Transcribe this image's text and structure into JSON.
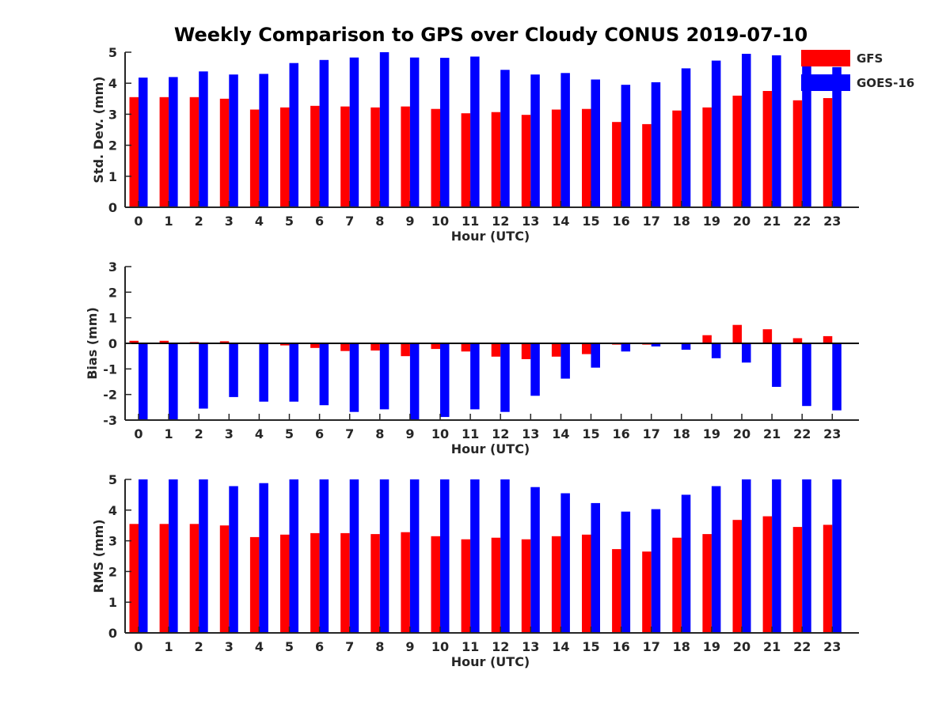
{
  "title": "Weekly Comparison to GPS over Cloudy CONUS 2019-07-10",
  "colors": {
    "GFS": "#ff0000",
    "GOES-16": "#0000ff",
    "axis": "#262626"
  },
  "legend": {
    "placement": "top-right",
    "entries": [
      "GFS",
      "GOES-16"
    ]
  },
  "chart_data": [
    {
      "type": "bar",
      "ylabel": "Std. Dev. (mm)",
      "xlabel": "Hour (UTC)",
      "ylim": [
        0,
        5
      ],
      "yticks": [
        0,
        1,
        2,
        3,
        4,
        5
      ],
      "categories": [
        "0",
        "1",
        "2",
        "3",
        "4",
        "5",
        "6",
        "7",
        "8",
        "9",
        "10",
        "11",
        "12",
        "13",
        "14",
        "15",
        "16",
        "17",
        "18",
        "19",
        "20",
        "21",
        "22",
        "23"
      ],
      "series": [
        {
          "name": "GFS",
          "values": [
            3.55,
            3.55,
            3.55,
            3.5,
            3.15,
            3.22,
            3.27,
            3.25,
            3.22,
            3.25,
            3.17,
            3.03,
            3.07,
            2.98,
            3.15,
            3.17,
            2.75,
            2.68,
            3.12,
            3.22,
            3.6,
            3.75,
            3.45,
            3.52
          ]
        },
        {
          "name": "GOES-16",
          "values": [
            4.18,
            4.2,
            4.38,
            4.28,
            4.3,
            4.65,
            4.75,
            4.83,
            5.0,
            4.83,
            4.82,
            4.86,
            4.43,
            4.28,
            4.33,
            4.12,
            3.95,
            4.03,
            4.48,
            4.73,
            4.95,
            4.9,
            4.6,
            4.52
          ]
        }
      ]
    },
    {
      "type": "bar",
      "ylabel": "Bias (mm)",
      "xlabel": "Hour (UTC)",
      "ylim": [
        -3,
        3
      ],
      "yticks": [
        -3,
        -2,
        -1,
        0,
        1,
        2,
        3
      ],
      "categories": [
        "0",
        "1",
        "2",
        "3",
        "4",
        "5",
        "6",
        "7",
        "8",
        "9",
        "10",
        "11",
        "12",
        "13",
        "14",
        "15",
        "16",
        "17",
        "18",
        "19",
        "20",
        "21",
        "22",
        "23"
      ],
      "series": [
        {
          "name": "GFS",
          "values": [
            0.1,
            0.1,
            0.05,
            0.08,
            0.0,
            -0.08,
            -0.18,
            -0.3,
            -0.28,
            -0.5,
            -0.22,
            -0.32,
            -0.52,
            -0.62,
            -0.52,
            -0.42,
            -0.05,
            -0.05,
            0.0,
            0.32,
            0.72,
            0.55,
            0.2,
            0.28
          ]
        },
        {
          "name": "GOES-16",
          "values": [
            -3.0,
            -3.0,
            -2.55,
            -2.1,
            -2.28,
            -2.28,
            -2.42,
            -2.68,
            -2.58,
            -2.98,
            -2.88,
            -2.58,
            -2.68,
            -2.05,
            -1.38,
            -0.95,
            -0.32,
            -0.12,
            -0.25,
            -0.58,
            -0.75,
            -1.7,
            -2.45,
            -2.62
          ]
        }
      ]
    },
    {
      "type": "bar",
      "ylabel": "RMS (mm)",
      "xlabel": "Hour (UTC)",
      "ylim": [
        0,
        5
      ],
      "yticks": [
        0,
        1,
        2,
        3,
        4,
        5
      ],
      "categories": [
        "0",
        "1",
        "2",
        "3",
        "4",
        "5",
        "6",
        "7",
        "8",
        "9",
        "10",
        "11",
        "12",
        "13",
        "14",
        "15",
        "16",
        "17",
        "18",
        "19",
        "20",
        "21",
        "22",
        "23"
      ],
      "series": [
        {
          "name": "GFS",
          "values": [
            3.55,
            3.55,
            3.55,
            3.5,
            3.12,
            3.2,
            3.25,
            3.25,
            3.22,
            3.28,
            3.15,
            3.05,
            3.1,
            3.05,
            3.15,
            3.2,
            2.73,
            2.65,
            3.1,
            3.22,
            3.68,
            3.8,
            3.45,
            3.52
          ]
        },
        {
          "name": "GOES-16",
          "values": [
            5.0,
            5.0,
            5.0,
            4.78,
            4.88,
            5.0,
            5.0,
            5.0,
            5.0,
            5.0,
            5.0,
            5.0,
            5.0,
            4.75,
            4.55,
            4.23,
            3.95,
            4.03,
            4.5,
            4.78,
            5.0,
            5.0,
            5.0,
            5.0
          ]
        }
      ]
    }
  ]
}
